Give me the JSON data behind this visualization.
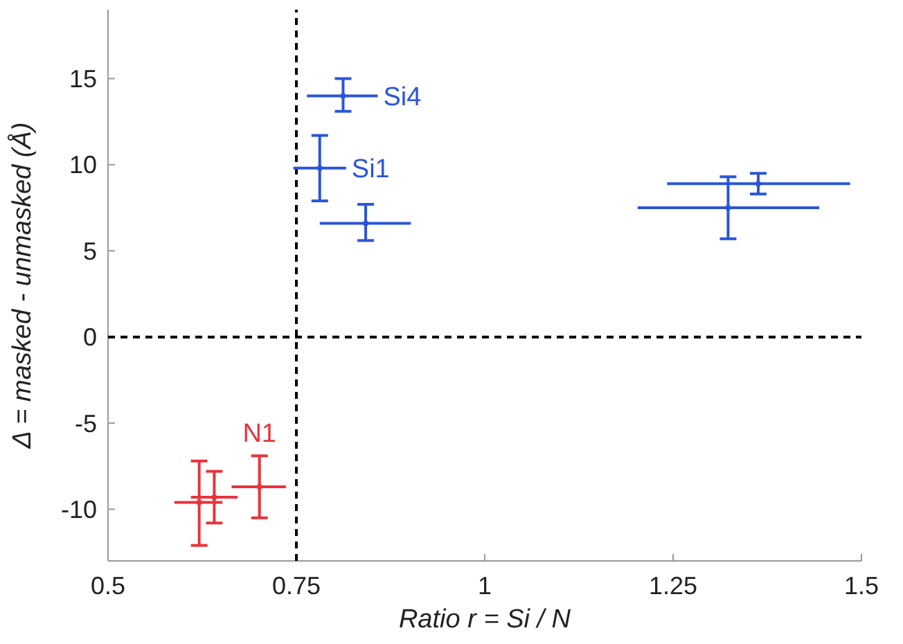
{
  "chart_data": {
    "type": "scatter",
    "xlabel": "Ratio r = Si / N",
    "ylabel": "Δ = masked - unmasked (Å)",
    "xlim": [
      0.5,
      1.5
    ],
    "ylim": [
      -13,
      19
    ],
    "xticks": [
      0.5,
      0.75,
      1,
      1.25,
      1.5
    ],
    "yticks": [
      -10,
      -5,
      0,
      5,
      10,
      15
    ],
    "grid": false,
    "marker": "circle",
    "series": [
      {
        "color": "#2a55d8",
        "x": [
          0.812,
          0.781,
          0.842,
          1.323,
          1.363
        ],
        "values": [
          14.0,
          9.8,
          6.6,
          7.5,
          8.9
        ],
        "errors": [
          [
            13.1,
            15.0
          ],
          [
            7.9,
            11.7
          ],
          [
            5.6,
            7.7
          ],
          [
            5.7,
            9.3
          ],
          [
            8.3,
            9.5
          ]
        ],
        "xerrors": [
          [
            0.764,
            0.858
          ],
          [
            0.746,
            0.816
          ],
          [
            0.781,
            0.902
          ],
          [
            1.203,
            1.444
          ],
          [
            1.242,
            1.485
          ]
        ]
      },
      {
        "color": "#e8333a",
        "x": [
          0.621,
          0.641,
          0.701
        ],
        "values": [
          -9.6,
          -9.3,
          -8.7
        ],
        "errors": [
          [
            -12.1,
            -7.2
          ],
          [
            -10.8,
            -7.8
          ],
          [
            -10.5,
            -6.9
          ]
        ],
        "xerrors": [
          [
            0.588,
            0.652
          ],
          [
            0.61,
            0.672
          ],
          [
            0.664,
            0.736
          ]
        ]
      }
    ],
    "ref_lines": [
      {
        "axis": "x",
        "value": 0.75,
        "color": "#000000",
        "line_style": "dashed"
      },
      {
        "axis": "y",
        "value": 0,
        "color": "#000000",
        "line_style": "dashed"
      }
    ],
    "annotations": [
      {
        "text": "Si4",
        "x": 0.812,
        "y": 14.0
      },
      {
        "text": "Si1",
        "x": 0.781,
        "y": 9.8
      },
      {
        "text": "N1",
        "x": 0.701,
        "y": -8.7
      }
    ]
  }
}
